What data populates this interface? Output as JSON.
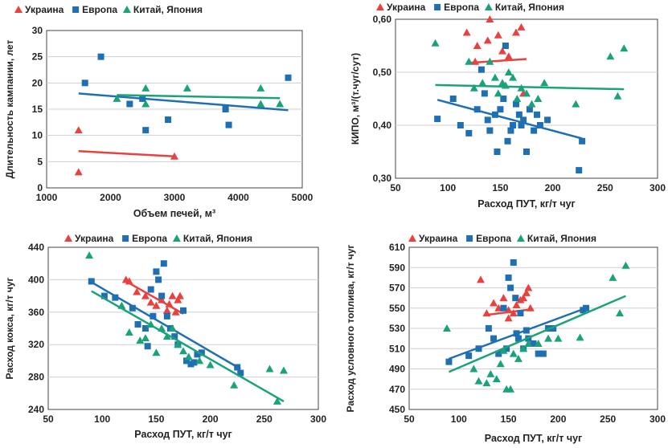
{
  "colors": {
    "ukraine": "#e8423f",
    "europe": "#1f6fb2",
    "china": "#1aa37a",
    "grid": "#cfcfcf",
    "axis": "#444444"
  },
  "chart_data": [
    {
      "type": "scatter",
      "xlabel": "Объем печей, м³",
      "ylabel": "Длительность кампании, лет",
      "xlim": [
        1000,
        5000
      ],
      "ylim": [
        0,
        30
      ],
      "xticks": [
        "1000",
        "2000",
        "3000",
        "4000",
        "5000"
      ],
      "yticks": [
        "0",
        "5",
        "10",
        "15",
        "20",
        "25",
        "30"
      ],
      "grid": "horizontal",
      "legend": "top",
      "series": [
        {
          "name": "Украина",
          "marker": "triangle",
          "color": "#e8423f",
          "points": [
            [
              1500,
              11
            ],
            [
              1500,
              3
            ],
            [
              3000,
              6
            ]
          ],
          "trend": [
            [
              1500,
              7
            ],
            [
              3000,
              6
            ]
          ]
        },
        {
          "name": "Европа",
          "marker": "square",
          "color": "#1f6fb2",
          "points": [
            [
              1600,
              20
            ],
            [
              1850,
              25
            ],
            [
              2300,
              16
            ],
            [
              2500,
              17
            ],
            [
              2550,
              11
            ],
            [
              2900,
              13
            ],
            [
              3800,
              15
            ],
            [
              3850,
              12
            ],
            [
              4780,
              21
            ]
          ],
          "trend": [
            [
              1500,
              18
            ],
            [
              4780,
              14.8
            ]
          ]
        },
        {
          "name": "Китай, Япония",
          "marker": "triangle",
          "color": "#1aa37a",
          "points": [
            [
              2100,
              17
            ],
            [
              2550,
              19
            ],
            [
              2550,
              16
            ],
            [
              3200,
              19
            ],
            [
              4350,
              19
            ],
            [
              4350,
              16
            ],
            [
              4650,
              16
            ]
          ],
          "trend": [
            [
              2100,
              17.7
            ],
            [
              4650,
              17.1
            ]
          ]
        }
      ]
    },
    {
      "type": "scatter",
      "xlabel": "Расход ПУТ, кг/т чуг",
      "ylabel": "КИПО, м³/(т.чуг/сут)",
      "xlim": [
        50,
        300
      ],
      "ylim": [
        0.3,
        0.6
      ],
      "xticks": [
        "50",
        "100",
        "150",
        "200",
        "250",
        "300"
      ],
      "yticks": [
        "0,30",
        "0,40",
        "0,50",
        "0,60"
      ],
      "grid": "horizontal",
      "legend": "top",
      "series": [
        {
          "name": "Украина",
          "marker": "triangle",
          "color": "#e8423f",
          "points": [
            [
              118,
              0.575
            ],
            [
              128,
              0.55
            ],
            [
              138,
              0.56
            ],
            [
              140,
              0.6
            ],
            [
              148,
              0.57
            ],
            [
              152,
              0.54
            ],
            [
              158,
              0.53
            ],
            [
              165,
              0.575
            ],
            [
              170,
              0.585
            ],
            [
              172,
              0.46
            ],
            [
              126,
              0.52
            ]
          ],
          "trend": [
            [
              122,
              0.518
            ],
            [
              175,
              0.525
            ]
          ]
        },
        {
          "name": "Европа",
          "marker": "square",
          "color": "#1f6fb2",
          "points": [
            [
              90,
              0.412
            ],
            [
              105,
              0.45
            ],
            [
              112,
              0.4
            ],
            [
              120,
              0.385
            ],
            [
              128,
              0.43
            ],
            [
              132,
              0.505
            ],
            [
              135,
              0.46
            ],
            [
              138,
              0.41
            ],
            [
              140,
              0.39
            ],
            [
              145,
              0.42
            ],
            [
              147,
              0.35
            ],
            [
              150,
              0.43
            ],
            [
              153,
              0.45
            ],
            [
              155,
              0.55
            ],
            [
              157,
              0.37
            ],
            [
              160,
              0.39
            ],
            [
              162,
              0.4
            ],
            [
              165,
              0.44
            ],
            [
              168,
              0.42
            ],
            [
              170,
              0.4
            ],
            [
              172,
              0.41
            ],
            [
              175,
              0.35
            ],
            [
              178,
              0.43
            ],
            [
              182,
              0.39
            ],
            [
              185,
              0.42
            ],
            [
              188,
              0.4
            ],
            [
              195,
              0.41
            ],
            [
              225,
              0.315
            ],
            [
              228,
              0.37
            ]
          ],
          "trend": [
            [
              90,
              0.448
            ],
            [
              228,
              0.375
            ]
          ]
        },
        {
          "name": "Китай, Япония",
          "marker": "triangle",
          "color": "#1aa37a",
          "points": [
            [
              88,
              0.555
            ],
            [
              120,
              0.52
            ],
            [
              125,
              0.47
            ],
            [
              133,
              0.48
            ],
            [
              140,
              0.52
            ],
            [
              145,
              0.49
            ],
            [
              148,
              0.46
            ],
            [
              152,
              0.48
            ],
            [
              155,
              0.475
            ],
            [
              158,
              0.5
            ],
            [
              162,
              0.49
            ],
            [
              166,
              0.45
            ],
            [
              170,
              0.47
            ],
            [
              175,
              0.46
            ],
            [
              180,
              0.44
            ],
            [
              186,
              0.45
            ],
            [
              192,
              0.48
            ],
            [
              222,
              0.44
            ],
            [
              255,
              0.53
            ],
            [
              262,
              0.455
            ],
            [
              268,
              0.545
            ]
          ],
          "trend": [
            [
              88,
              0.476
            ],
            [
              268,
              0.468
            ]
          ]
        }
      ]
    },
    {
      "type": "scatter",
      "xlabel": "Расход ПУТ, кг/т чуг",
      "ylabel": "Расход кокса, кг/т чуг",
      "xlim": [
        50,
        300
      ],
      "ylim": [
        240,
        440
      ],
      "xticks": [
        "50",
        "100",
        "150",
        "200",
        "250",
        "300"
      ],
      "yticks": [
        "240",
        "280",
        "320",
        "360",
        "400",
        "440"
      ],
      "grid": "horizontal",
      "legend": "top",
      "series": [
        {
          "name": "Украина",
          "marker": "triangle",
          "color": "#e8423f",
          "points": [
            [
              122,
              400
            ],
            [
              125,
              398
            ],
            [
              132,
              385
            ],
            [
              140,
              380
            ],
            [
              145,
              372
            ],
            [
              150,
              368
            ],
            [
              155,
              375
            ],
            [
              160,
              362
            ],
            [
              162,
              370
            ],
            [
              165,
              380
            ],
            [
              168,
              360
            ],
            [
              170,
              375
            ],
            [
              172,
              380
            ]
          ],
          "trend": [
            [
              122,
              398
            ],
            [
              175,
              358
            ]
          ]
        },
        {
          "name": "Европа",
          "marker": "square",
          "color": "#1f6fb2",
          "points": [
            [
              90,
              398
            ],
            [
              102,
              380
            ],
            [
              112,
              378
            ],
            [
              128,
              365
            ],
            [
              133,
              345
            ],
            [
              140,
              340
            ],
            [
              142,
              318
            ],
            [
              145,
              388
            ],
            [
              147,
              355
            ],
            [
              150,
              410
            ],
            [
              152,
              400
            ],
            [
              155,
              380
            ],
            [
              157,
              420
            ],
            [
              160,
              355
            ],
            [
              163,
              340
            ],
            [
              167,
              330
            ],
            [
              170,
              320
            ],
            [
              175,
              362
            ],
            [
              178,
              300
            ],
            [
              182,
              296
            ],
            [
              185,
              298
            ],
            [
              188,
              308
            ],
            [
              192,
              310
            ],
            [
              225,
              292
            ],
            [
              228,
              285
            ]
          ],
          "trend": [
            [
              90,
              397
            ],
            [
              228,
              290
            ]
          ]
        },
        {
          "name": "Китай, Япония",
          "marker": "triangle",
          "color": "#1aa37a",
          "points": [
            [
              88,
              430
            ],
            [
              118,
              368
            ],
            [
              125,
              335
            ],
            [
              135,
              325
            ],
            [
              140,
              328
            ],
            [
              145,
              345
            ],
            [
              150,
              310
            ],
            [
              155,
              340
            ],
            [
              160,
              330
            ],
            [
              165,
              340
            ],
            [
              170,
              320
            ],
            [
              175,
              312
            ],
            [
              180,
              305
            ],
            [
              190,
              300
            ],
            [
              200,
              295
            ],
            [
              222,
              270
            ],
            [
              255,
              290
            ],
            [
              262,
              250
            ],
            [
              268,
              288
            ]
          ],
          "trend": [
            [
              90,
              386
            ],
            [
              268,
              250
            ]
          ]
        }
      ]
    },
    {
      "type": "scatter",
      "xlabel": "Расход ПУТ, кг/т чуг",
      "ylabel": "Расход условного топлива, кг/т чуг",
      "xlim": [
        50,
        300
      ],
      "ylim": [
        450,
        610
      ],
      "xticks": [
        "50",
        "100",
        "150",
        "200",
        "250",
        "300"
      ],
      "yticks": [
        "450",
        "470",
        "490",
        "510",
        "530",
        "550",
        "570",
        "590",
        "610"
      ],
      "grid": "horizontal",
      "legend": "top",
      "series": [
        {
          "name": "Украина",
          "marker": "triangle",
          "color": "#e8423f",
          "points": [
            [
              122,
              578
            ],
            [
              128,
              545
            ],
            [
              135,
              555
            ],
            [
              140,
              550
            ],
            [
              145,
              560
            ],
            [
              150,
              548
            ],
            [
              155,
              545
            ],
            [
              158,
              553
            ],
            [
              162,
              558
            ],
            [
              165,
              560
            ],
            [
              168,
              565
            ],
            [
              170,
              570
            ],
            [
              172,
              550
            ],
            [
              150,
              540
            ]
          ],
          "trend": [
            [
              125,
              543
            ],
            [
              175,
              549
            ]
          ]
        },
        {
          "name": "Европа",
          "marker": "square",
          "color": "#1f6fb2",
          "points": [
            [
              90,
              497
            ],
            [
              110,
              503
            ],
            [
              120,
              510
            ],
            [
              130,
              530
            ],
            [
              135,
              520
            ],
            [
              140,
              505
            ],
            [
              145,
              550
            ],
            [
              148,
              510
            ],
            [
              150,
              580
            ],
            [
              152,
              570
            ],
            [
              155,
              595
            ],
            [
              157,
              560
            ],
            [
              158,
              525
            ],
            [
              160,
              520
            ],
            [
              162,
              545
            ],
            [
              165,
              510
            ],
            [
              168,
              528
            ],
            [
              170,
              520
            ],
            [
              175,
              515
            ],
            [
              180,
              505
            ],
            [
              185,
              505
            ],
            [
              190,
              530
            ],
            [
              195,
              530
            ],
            [
              225,
              548
            ],
            [
              228,
              550
            ]
          ],
          "trend": [
            [
              90,
              500
            ],
            [
              228,
              550
            ]
          ]
        },
        {
          "name": "Китай, Япония",
          "marker": "triangle",
          "color": "#1aa37a",
          "points": [
            [
              88,
              530
            ],
            [
              115,
              490
            ],
            [
              120,
              478
            ],
            [
              128,
              476
            ],
            [
              132,
              485
            ],
            [
              138,
              480
            ],
            [
              142,
              495
            ],
            [
              145,
              508
            ],
            [
              148,
              470
            ],
            [
              152,
              470
            ],
            [
              155,
              505
            ],
            [
              160,
              500
            ],
            [
              165,
              510
            ],
            [
              170,
              515
            ],
            [
              180,
              515
            ],
            [
              190,
              520
            ],
            [
              200,
              520
            ],
            [
              222,
              521
            ],
            [
              255,
              580
            ],
            [
              262,
              545
            ],
            [
              268,
              592
            ]
          ],
          "trend": [
            [
              90,
              487
            ],
            [
              268,
              562
            ]
          ]
        }
      ]
    }
  ]
}
